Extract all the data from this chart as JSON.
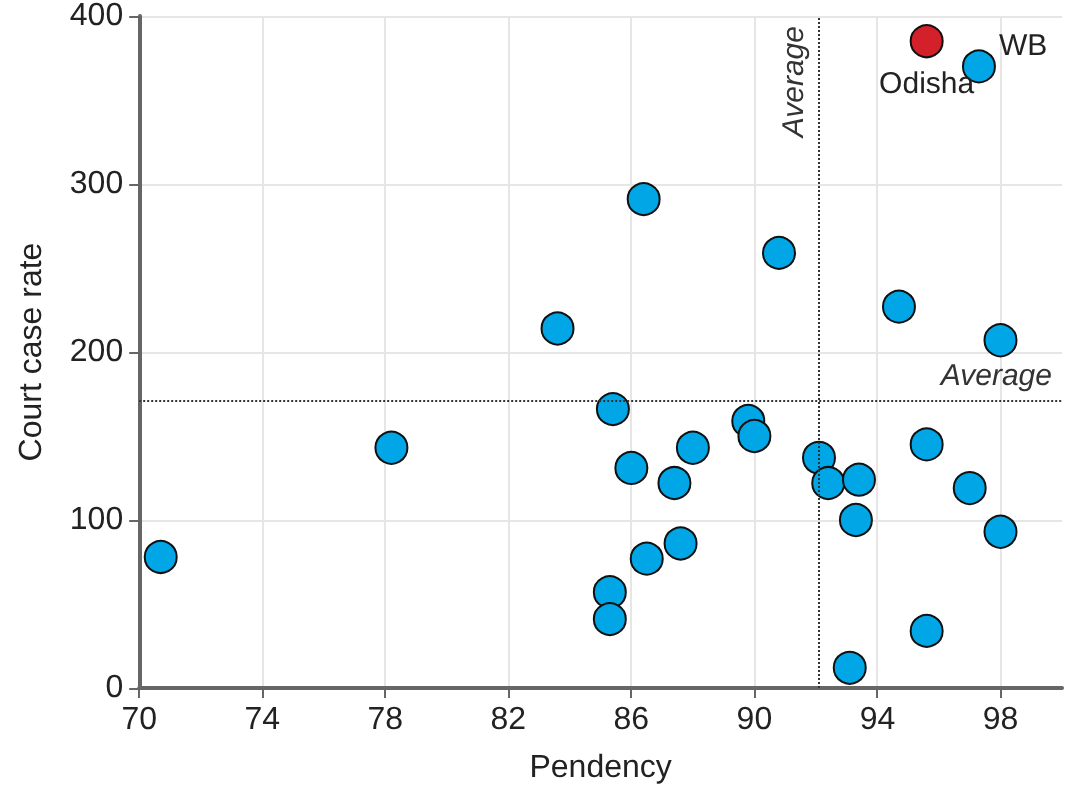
{
  "chart_data": {
    "type": "scatter",
    "xlabel": "Pendency",
    "ylabel": "Court case rate",
    "xlim": [
      70,
      100
    ],
    "xticks": [
      70,
      74,
      78,
      82,
      86,
      90,
      94,
      98
    ],
    "ylim": [
      0,
      400
    ],
    "yticks": [
      0,
      100,
      200,
      300,
      400
    ],
    "grid": true,
    "marker": "circle",
    "series": [
      {
        "color": "#00a6e6",
        "x": [
          70.7,
          78.2,
          83.6,
          86.4,
          85.4,
          86.0,
          88.0,
          87.4,
          86.5,
          87.6,
          85.3,
          85.3,
          90.8,
          89.8,
          90.0,
          92.1,
          92.4,
          93.4,
          93.3,
          93.1,
          94.7,
          95.6,
          95.6,
          97.0,
          98.0,
          98.0,
          97.3
        ],
        "values": [
          78,
          143,
          214,
          291,
          166,
          131,
          143,
          122,
          77,
          86,
          57,
          41,
          259,
          159,
          150,
          137,
          122,
          124,
          100,
          12,
          227,
          145,
          34,
          119,
          207,
          93,
          370
        ]
      },
      {
        "color": "#d3202a",
        "x": [
          95.6
        ],
        "values": [
          385
        ]
      }
    ],
    "ref_lines": [
      {
        "axis": "x",
        "value": 92.1,
        "label": "Average",
        "line_style": "dotted"
      },
      {
        "axis": "y",
        "value": 171,
        "label": "Average",
        "line_style": "dotted"
      }
    ],
    "annotations": [
      {
        "text": "WB",
        "x": 97.3,
        "y": 370
      },
      {
        "text": "Odisha",
        "x": 95.6,
        "y": 385
      }
    ]
  }
}
